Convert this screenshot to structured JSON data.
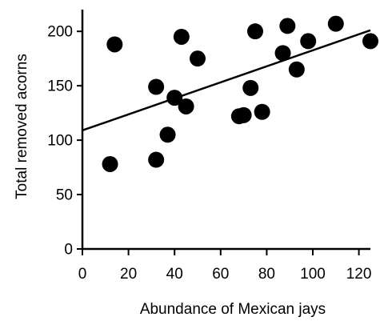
{
  "chart_data": {
    "type": "scatter",
    "title": "",
    "xlabel": "Abundance of Mexican jays",
    "ylabel": "Total removed acorns",
    "xlim": [
      0,
      125
    ],
    "ylim": [
      0,
      220
    ],
    "xticks": [
      0,
      20,
      40,
      60,
      80,
      100,
      120
    ],
    "yticks": [
      0,
      50,
      100,
      150,
      200
    ],
    "grid": false,
    "legend": "none",
    "point_color": "#000000",
    "line_color": "#000000",
    "series": [
      {
        "points": [
          {
            "x": 12,
            "y": 78
          },
          {
            "x": 14,
            "y": 188
          },
          {
            "x": 32,
            "y": 149
          },
          {
            "x": 32,
            "y": 82
          },
          {
            "x": 37,
            "y": 105
          },
          {
            "x": 40,
            "y": 139
          },
          {
            "x": 43,
            "y": 195
          },
          {
            "x": 45,
            "y": 131
          },
          {
            "x": 50,
            "y": 175
          },
          {
            "x": 68,
            "y": 122
          },
          {
            "x": 70,
            "y": 123
          },
          {
            "x": 73,
            "y": 148
          },
          {
            "x": 75,
            "y": 200
          },
          {
            "x": 78,
            "y": 126
          },
          {
            "x": 87,
            "y": 180
          },
          {
            "x": 89,
            "y": 205
          },
          {
            "x": 93,
            "y": 165
          },
          {
            "x": 98,
            "y": 191
          },
          {
            "x": 110,
            "y": 207
          },
          {
            "x": 125,
            "y": 191
          }
        ]
      }
    ],
    "trendline": {
      "x": [
        0,
        125
      ],
      "y": [
        109,
        201
      ]
    }
  }
}
